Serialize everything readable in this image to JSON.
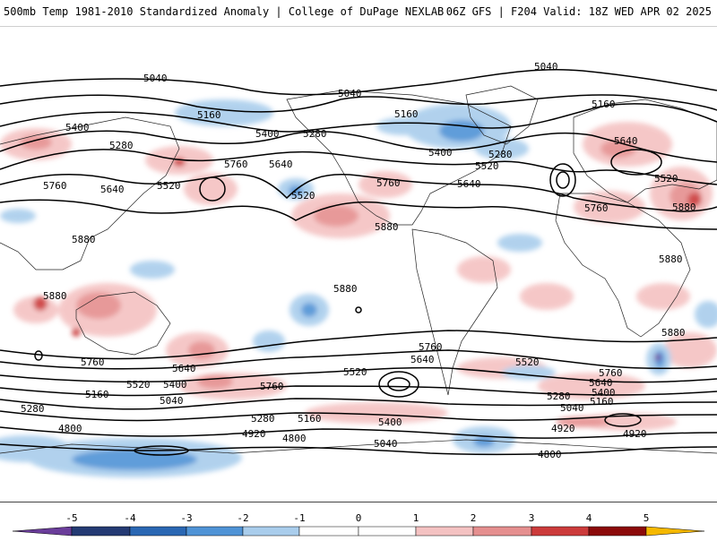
{
  "header": {
    "left_title": "500mb Temp 1981-2010 Standardized Anomaly | College of DuPage NEXLAB",
    "right_title": "06Z GFS | F204 Valid: 18Z WED APR 02 2025"
  },
  "contour_labels": [
    "4800",
    "4920",
    "5040",
    "5160",
    "5280",
    "5400",
    "5520",
    "5640",
    "5760",
    "5880"
  ],
  "colorbar": {
    "ticks": [
      "-5",
      "-4",
      "-3",
      "-2",
      "-1",
      "0",
      "1",
      "2",
      "3",
      "4",
      "5"
    ],
    "colors": {
      "lt_minus5": "#6a3d9a",
      "m5_m4": "#243a73",
      "m4_m3": "#2a67b3",
      "m3_m2": "#4f93d6",
      "m2_m1": "#a9cdec",
      "m1_0": "#ffffff",
      "p0_p1": "#ffffff",
      "p1_p2": "#f4c2c2",
      "p2_p3": "#e58f8f",
      "p3_p4": "#cc3b3b",
      "p4_p5": "#8b0a0a",
      "gt_5": "#f5b800"
    }
  },
  "chart_data": {
    "type": "heatmap",
    "title": "500mb Temp 1981-2010 Standardized Anomaly",
    "colorbar_range": [
      -5,
      5
    ],
    "contour_field": "500mb geopotential height",
    "contour_values": [
      4800,
      4920,
      5040,
      5160,
      5280,
      5400,
      5520,
      5640,
      5760,
      5880
    ]
  }
}
